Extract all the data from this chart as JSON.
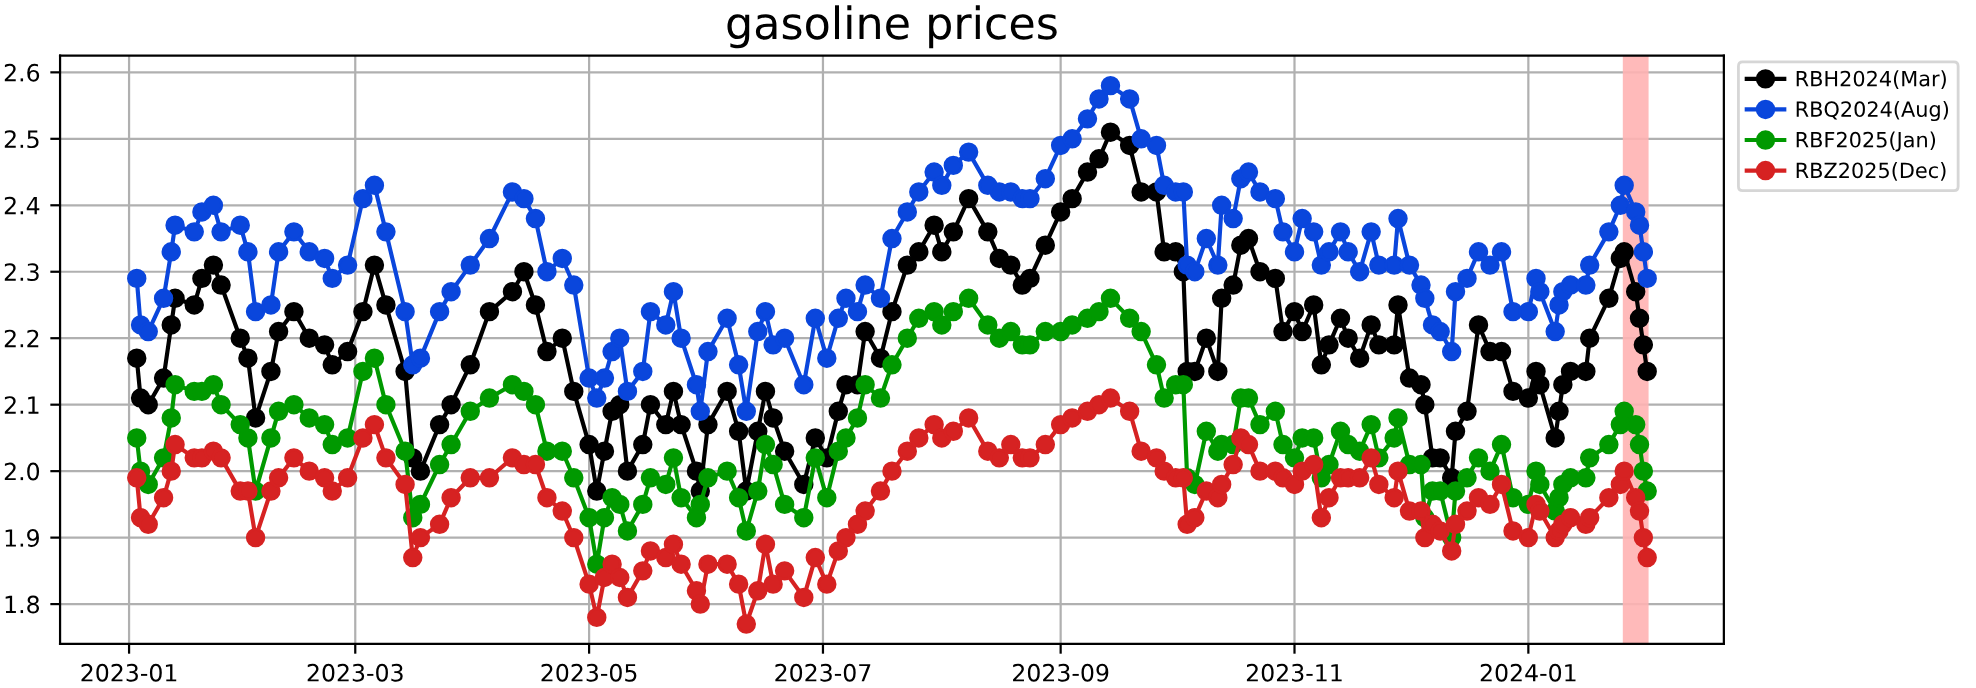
{
  "chart_data": {
    "type": "line",
    "title": "gasoline prices",
    "x": [
      "2023-01-03",
      "2023-01-04",
      "2023-01-06",
      "2023-01-10",
      "2023-01-12",
      "2023-01-13",
      "2023-01-18",
      "2023-01-20",
      "2023-01-23",
      "2023-01-25",
      "2023-01-30",
      "2023-02-01",
      "2023-02-03",
      "2023-02-07",
      "2023-02-09",
      "2023-02-13",
      "2023-02-17",
      "2023-02-21",
      "2023-02-23",
      "2023-02-27",
      "2023-03-03",
      "2023-03-06",
      "2023-03-09",
      "2023-03-14",
      "2023-03-16",
      "2023-03-18",
      "2023-03-23",
      "2023-03-26",
      "2023-03-31",
      "2023-04-05",
      "2023-04-11",
      "2023-04-14",
      "2023-04-17",
      "2023-04-20",
      "2023-04-24",
      "2023-04-27",
      "2023-05-01",
      "2023-05-03",
      "2023-05-05",
      "2023-05-07",
      "2023-05-09",
      "2023-05-11",
      "2023-05-15",
      "2023-05-17",
      "2023-05-21",
      "2023-05-23",
      "2023-05-25",
      "2023-05-29",
      "2023-05-30",
      "2023-06-01",
      "2023-06-06",
      "2023-06-09",
      "2023-06-11",
      "2023-06-14",
      "2023-06-16",
      "2023-06-18",
      "2023-06-21",
      "2023-06-26",
      "2023-06-29",
      "2023-07-02",
      "2023-07-05",
      "2023-07-07",
      "2023-07-10",
      "2023-07-12",
      "2023-07-16",
      "2023-07-19",
      "2023-07-23",
      "2023-07-26",
      "2023-07-30",
      "2023-08-01",
      "2023-08-04",
      "2023-08-08",
      "2023-08-13",
      "2023-08-16",
      "2023-08-19",
      "2023-08-22",
      "2023-08-24",
      "2023-08-28",
      "2023-09-01",
      "2023-09-04",
      "2023-09-08",
      "2023-09-11",
      "2023-09-14",
      "2023-09-19",
      "2023-09-22",
      "2023-09-26",
      "2023-09-28",
      "2023-10-01",
      "2023-10-03",
      "2023-10-04",
      "2023-10-06",
      "2023-10-09",
      "2023-10-12",
      "2023-10-13",
      "2023-10-16",
      "2023-10-18",
      "2023-10-20",
      "2023-10-23",
      "2023-10-27",
      "2023-10-29",
      "2023-11-01",
      "2023-11-03",
      "2023-11-06",
      "2023-11-08",
      "2023-11-10",
      "2023-11-13",
      "2023-11-15",
      "2023-11-18",
      "2023-11-21",
      "2023-11-23",
      "2023-11-27",
      "2023-11-28",
      "2023-12-01",
      "2023-12-04",
      "2023-12-05",
      "2023-12-07",
      "2023-12-09",
      "2023-12-12",
      "2023-12-13",
      "2023-12-16",
      "2023-12-19",
      "2023-12-22",
      "2023-12-25",
      "2023-12-28",
      "2024-01-01",
      "2024-01-03",
      "2024-01-04",
      "2024-01-08",
      "2024-01-09",
      "2024-01-10",
      "2024-01-12",
      "2024-01-16",
      "2024-01-17",
      "2024-01-22",
      "2024-01-25",
      "2024-01-26",
      "2024-01-29",
      "2024-01-30",
      "2024-01-31",
      "2024-02-01"
    ],
    "series": [
      {
        "name": "RBH2024(Mar)",
        "color": "#000000",
        "values": [
          2.17,
          2.11,
          2.1,
          2.14,
          2.22,
          2.26,
          2.25,
          2.29,
          2.31,
          2.28,
          2.2,
          2.17,
          2.08,
          2.15,
          2.21,
          2.24,
          2.2,
          2.19,
          2.16,
          2.18,
          2.24,
          2.31,
          2.25,
          2.15,
          2.02,
          2.0,
          2.07,
          2.1,
          2.16,
          2.24,
          2.27,
          2.3,
          2.25,
          2.18,
          2.2,
          2.12,
          2.04,
          1.97,
          2.03,
          2.09,
          2.1,
          2.0,
          2.04,
          2.1,
          2.07,
          2.12,
          2.07,
          2.0,
          1.97,
          2.07,
          2.12,
          2.06,
          1.97,
          2.06,
          2.12,
          2.08,
          2.03,
          1.98,
          2.05,
          2.02,
          2.09,
          2.13,
          2.13,
          2.21,
          2.17,
          2.24,
          2.31,
          2.33,
          2.37,
          2.33,
          2.36,
          2.41,
          2.36,
          2.32,
          2.31,
          2.28,
          2.29,
          2.34,
          2.39,
          2.41,
          2.45,
          2.47,
          2.51,
          2.49,
          2.42,
          2.42,
          2.33,
          2.33,
          2.3,
          2.15,
          2.15,
          2.2,
          2.15,
          2.26,
          2.28,
          2.34,
          2.35,
          2.3,
          2.29,
          2.21,
          2.24,
          2.21,
          2.25,
          2.16,
          2.19,
          2.23,
          2.2,
          2.17,
          2.22,
          2.19,
          2.19,
          2.25,
          2.14,
          2.13,
          2.1,
          2.02,
          2.02,
          1.99,
          2.06,
          2.09,
          2.22,
          2.18,
          2.18,
          2.12,
          2.11,
          2.15,
          2.13,
          2.05,
          2.09,
          2.13,
          2.15,
          2.15,
          2.2,
          2.26,
          2.32,
          2.33,
          2.27,
          2.23,
          2.19,
          2.15
        ]
      },
      {
        "name": "RBQ2024(Aug)",
        "color": "#0a46dc",
        "values": [
          2.29,
          2.22,
          2.21,
          2.26,
          2.33,
          2.37,
          2.36,
          2.39,
          2.4,
          2.36,
          2.37,
          2.33,
          2.24,
          2.25,
          2.33,
          2.36,
          2.33,
          2.32,
          2.29,
          2.31,
          2.41,
          2.43,
          2.36,
          2.24,
          2.16,
          2.17,
          2.24,
          2.27,
          2.31,
          2.35,
          2.42,
          2.41,
          2.38,
          2.3,
          2.32,
          2.28,
          2.14,
          2.11,
          2.14,
          2.18,
          2.2,
          2.12,
          2.15,
          2.24,
          2.22,
          2.27,
          2.2,
          2.13,
          2.09,
          2.18,
          2.23,
          2.16,
          2.09,
          2.21,
          2.24,
          2.19,
          2.2,
          2.13,
          2.23,
          2.17,
          2.23,
          2.26,
          2.24,
          2.28,
          2.26,
          2.35,
          2.39,
          2.42,
          2.45,
          2.43,
          2.46,
          2.48,
          2.43,
          2.42,
          2.42,
          2.41,
          2.41,
          2.44,
          2.49,
          2.5,
          2.53,
          2.56,
          2.58,
          2.56,
          2.5,
          2.49,
          2.43,
          2.42,
          2.42,
          2.31,
          2.3,
          2.35,
          2.31,
          2.4,
          2.38,
          2.44,
          2.45,
          2.42,
          2.41,
          2.36,
          2.33,
          2.38,
          2.36,
          2.31,
          2.33,
          2.36,
          2.33,
          2.3,
          2.36,
          2.31,
          2.31,
          2.38,
          2.31,
          2.28,
          2.26,
          2.22,
          2.21,
          2.18,
          2.27,
          2.29,
          2.33,
          2.31,
          2.33,
          2.24,
          2.24,
          2.29,
          2.27,
          2.21,
          2.25,
          2.27,
          2.28,
          2.28,
          2.31,
          2.36,
          2.4,
          2.43,
          2.39,
          2.37,
          2.33,
          2.29
        ]
      },
      {
        "name": "RBF2025(Jan)",
        "color": "#009900",
        "values": [
          2.05,
          2.0,
          1.98,
          2.02,
          2.08,
          2.13,
          2.12,
          2.12,
          2.13,
          2.1,
          2.07,
          2.05,
          1.97,
          2.05,
          2.09,
          2.1,
          2.08,
          2.07,
          2.04,
          2.05,
          2.15,
          2.17,
          2.1,
          2.03,
          1.93,
          1.95,
          2.01,
          2.04,
          2.09,
          2.11,
          2.13,
          2.12,
          2.1,
          2.03,
          2.03,
          1.99,
          1.93,
          1.86,
          1.93,
          1.96,
          1.95,
          1.91,
          1.95,
          1.99,
          1.98,
          2.02,
          1.96,
          1.93,
          1.95,
          1.99,
          2.0,
          1.96,
          1.91,
          1.97,
          2.04,
          2.01,
          1.95,
          1.93,
          2.02,
          1.96,
          2.03,
          2.05,
          2.08,
          2.13,
          2.11,
          2.16,
          2.2,
          2.23,
          2.24,
          2.22,
          2.24,
          2.26,
          2.22,
          2.2,
          2.21,
          2.19,
          2.19,
          2.21,
          2.21,
          2.22,
          2.23,
          2.24,
          2.26,
          2.23,
          2.21,
          2.16,
          2.11,
          2.13,
          2.13,
          1.99,
          1.98,
          2.06,
          2.03,
          2.04,
          2.04,
          2.11,
          2.11,
          2.07,
          2.09,
          2.04,
          2.02,
          2.05,
          2.05,
          1.99,
          2.01,
          2.06,
          2.04,
          2.03,
          2.07,
          2.02,
          2.05,
          2.08,
          2.01,
          2.01,
          1.93,
          1.97,
          1.97,
          1.9,
          1.97,
          1.99,
          2.02,
          2.0,
          2.04,
          1.96,
          1.95,
          2.0,
          1.98,
          1.94,
          1.96,
          1.98,
          1.99,
          1.99,
          2.02,
          2.04,
          2.07,
          2.09,
          2.07,
          2.04,
          2.0,
          1.97
        ]
      },
      {
        "name": "RBZ2025(Dec)",
        "color": "#d62222",
        "values": [
          1.99,
          1.93,
          1.92,
          1.96,
          2.0,
          2.04,
          2.02,
          2.02,
          2.03,
          2.02,
          1.97,
          1.97,
          1.9,
          1.97,
          1.99,
          2.02,
          2.0,
          1.99,
          1.97,
          1.99,
          2.05,
          2.07,
          2.02,
          1.98,
          1.87,
          1.9,
          1.92,
          1.96,
          1.99,
          1.99,
          2.02,
          2.01,
          2.01,
          1.96,
          1.94,
          1.9,
          1.83,
          1.78,
          1.84,
          1.86,
          1.84,
          1.81,
          1.85,
          1.88,
          1.87,
          1.89,
          1.86,
          1.82,
          1.8,
          1.86,
          1.86,
          1.83,
          1.77,
          1.82,
          1.89,
          1.83,
          1.85,
          1.81,
          1.87,
          1.83,
          1.88,
          1.9,
          1.92,
          1.94,
          1.97,
          2.0,
          2.03,
          2.05,
          2.07,
          2.05,
          2.06,
          2.08,
          2.03,
          2.02,
          2.04,
          2.02,
          2.02,
          2.04,
          2.07,
          2.08,
          2.09,
          2.1,
          2.11,
          2.09,
          2.03,
          2.02,
          2.0,
          1.99,
          1.99,
          1.92,
          1.93,
          1.97,
          1.96,
          1.98,
          2.01,
          2.05,
          2.04,
          2.0,
          2.0,
          1.99,
          1.98,
          2.0,
          2.01,
          1.93,
          1.96,
          1.99,
          1.99,
          1.99,
          2.02,
          1.98,
          1.96,
          2.0,
          1.94,
          1.94,
          1.9,
          1.92,
          1.91,
          1.88,
          1.92,
          1.94,
          1.96,
          1.95,
          1.98,
          1.91,
          1.9,
          1.95,
          1.94,
          1.9,
          1.91,
          1.92,
          1.93,
          1.92,
          1.93,
          1.96,
          1.98,
          2.0,
          1.96,
          1.94,
          1.9,
          1.87
        ]
      }
    ],
    "xlim": [
      "2022-12-14",
      "2024-02-21"
    ],
    "ylim": [
      1.74,
      2.625
    ],
    "xticks": [
      "2023-01",
      "2023-03",
      "2023-05",
      "2023-07",
      "2023-09",
      "2023-11",
      "2024-01"
    ],
    "yticks": [
      {
        "value": 1.8,
        "label": "1.8"
      },
      {
        "value": 1.9,
        "label": "1.9"
      },
      {
        "value": 2.0,
        "label": "2.0"
      },
      {
        "value": 2.1,
        "label": "2.1"
      },
      {
        "value": 2.2,
        "label": "2.2"
      },
      {
        "value": 2.3,
        "label": "2.3"
      },
      {
        "value": 2.4,
        "label": "2.4"
      },
      {
        "value": 2.5,
        "label": "2.5"
      },
      {
        "value": 2.6,
        "label": "2.6"
      }
    ],
    "bands": [
      {
        "axis": "x",
        "from": "2024-01-26",
        "to": "2024-02-01",
        "color": "#ffb3b3"
      }
    ],
    "grid": true,
    "legend": "top right",
    "marker": "circle"
  }
}
